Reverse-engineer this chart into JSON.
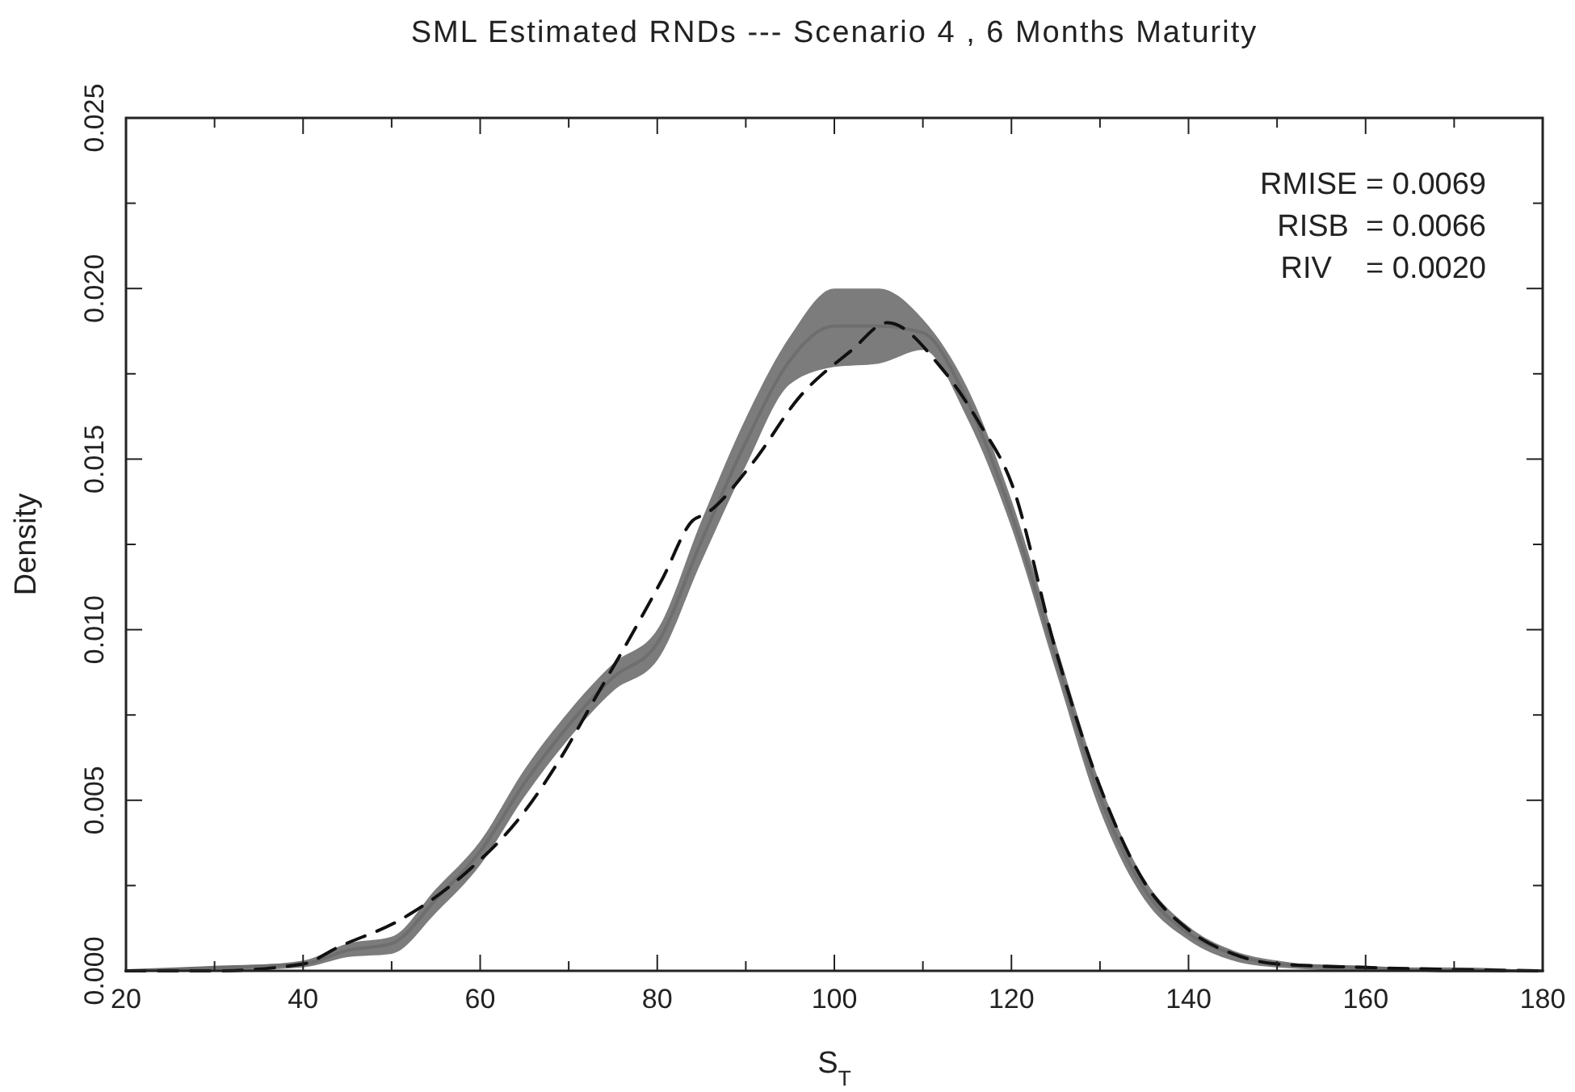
{
  "chart_data": {
    "type": "line",
    "title": "SML Estimated RNDs --- Scenario 4 , 6 Months Maturity",
    "xlabel": "S$_{T}$",
    "ylabel": "Density",
    "annotations": [
      "RMISE = 0.0069",
      "RISB  = 0.0066",
      "RIV    = 0.0020"
    ],
    "series": [
      {
        "color": "#6e6e6e",
        "x": [
          20,
          30,
          40,
          45,
          50,
          55,
          60,
          65,
          70,
          75,
          80,
          85,
          90,
          95,
          100,
          105,
          110,
          115,
          120,
          125,
          130,
          135,
          140,
          145,
          150,
          160,
          170,
          180
        ],
        "lower": [
          0,
          0,
          0.0001,
          0.0004,
          0.0005,
          0.0017,
          0.0031,
          0.0051,
          0.0068,
          0.0082,
          0.0091,
          0.012,
          0.0148,
          0.0172,
          0.0177,
          0.0178,
          0.0182,
          0.0162,
          0.013,
          0.0088,
          0.0047,
          0.0021,
          0.0009,
          0.0003,
          0.0001,
          0,
          0,
          0
        ],
        "upper": [
          0,
          0.0001,
          0.0003,
          0.0008,
          0.001,
          0.0024,
          0.0038,
          0.0059,
          0.0076,
          0.009,
          0.01,
          0.0132,
          0.0162,
          0.0186,
          0.02,
          0.02,
          0.0191,
          0.0171,
          0.0138,
          0.0096,
          0.0055,
          0.0027,
          0.0013,
          0.0006,
          0.0003,
          0.0001,
          0.0001,
          0
        ],
        "values": [
          0,
          0.0001,
          0.0002,
          0.0006,
          0.0008,
          0.0021,
          0.0035,
          0.0055,
          0.0072,
          0.0086,
          0.0096,
          0.0126,
          0.0155,
          0.0179,
          0.0189,
          0.0189,
          0.0187,
          0.0167,
          0.0134,
          0.0092,
          0.0051,
          0.0024,
          0.0011,
          0.0005,
          0.0002,
          0.0001,
          0,
          0
        ]
      },
      {
        "type": "line",
        "line_style": "dashed",
        "color": "#111111",
        "x": [
          20,
          30,
          40,
          44,
          51,
          58.5,
          64.5,
          69,
          73,
          77,
          80.6,
          84,
          85.5,
          90.8,
          96,
          102,
          106,
          112,
          116.5,
          120,
          125,
          130,
          135,
          140,
          145,
          150,
          160,
          180
        ],
        "values": [
          0,
          0,
          0.0002,
          0.0007,
          0.0015,
          0.0029,
          0.0045,
          0.0062,
          0.008,
          0.0098,
          0.0115,
          0.0132,
          0.0134,
          0.0149,
          0.0168,
          0.0182,
          0.019,
          0.0177,
          0.016,
          0.0143,
          0.0094,
          0.0054,
          0.0026,
          0.0012,
          0.0005,
          0.0002,
          0.0001,
          0
        ]
      }
    ],
    "xlim": [
      20,
      180
    ],
    "xticks": [
      20,
      {
        "value": 30,
        "label": null
      },
      40,
      {
        "value": 50,
        "label": null
      },
      60,
      {
        "value": 70,
        "label": null
      },
      80,
      {
        "value": 90,
        "label": null
      },
      100,
      {
        "value": 110,
        "label": null
      },
      120,
      {
        "value": 130,
        "label": null
      },
      140,
      {
        "value": 150,
        "label": null
      },
      160,
      {
        "value": 170,
        "label": null
      },
      180
    ],
    "ylim": [
      0,
      0.025
    ],
    "yticks": [
      {
        "value": 0,
        "label": "0.000"
      },
      {
        "value": 0.0025,
        "label": null
      },
      {
        "value": 0.005,
        "label": "0.005"
      },
      {
        "value": 0.0075,
        "label": null
      },
      {
        "value": 0.01,
        "label": "0.010"
      },
      {
        "value": 0.0125,
        "label": null
      },
      {
        "value": 0.015,
        "label": "0.015"
      },
      {
        "value": 0.0175,
        "label": null
      },
      {
        "value": 0.02,
        "label": "0.020"
      },
      {
        "value": 0.0225,
        "label": null
      },
      {
        "value": 0.025,
        "label": "0.025"
      }
    ],
    "grid": false
  }
}
